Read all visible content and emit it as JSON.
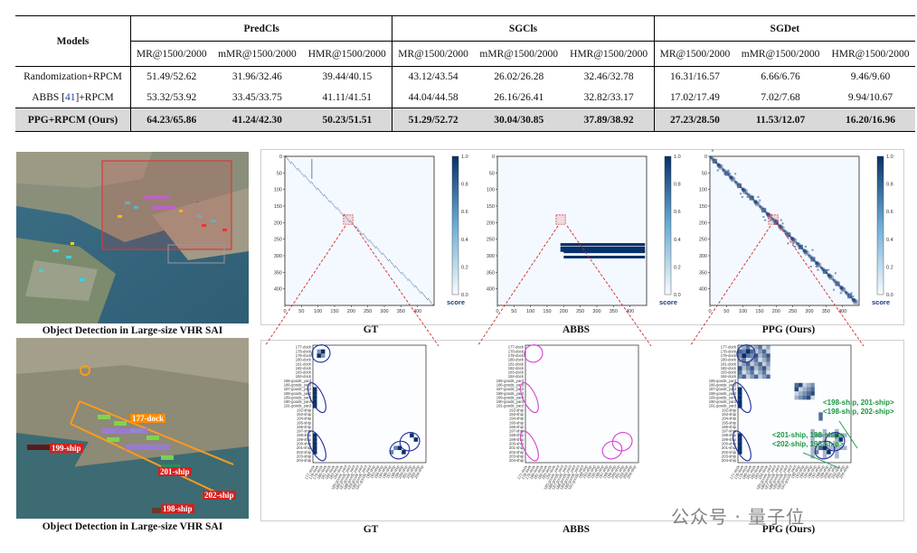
{
  "table": {
    "models_header": "Models",
    "groups": [
      "PredCls",
      "SGCls",
      "SGDet"
    ],
    "metrics": [
      "MR@1500/2000",
      "mMR@1500/2000",
      "HMR@1500/2000"
    ],
    "rows": [
      {
        "model": "Randomization+RPCM",
        "cells": [
          "51.49/52.62",
          "31.96/32.46",
          "39.44/40.15",
          "43.12/43.54",
          "26.02/26.28",
          "32.46/32.78",
          "16.31/16.57",
          "6.66/6.76",
          "9.46/9.60"
        ]
      },
      {
        "model_prefix": "ABBS [",
        "model_ref": "41",
        "model_suffix": "]+RPCM",
        "cells": [
          "53.32/53.92",
          "33.45/33.75",
          "41.11/41.51",
          "44.04/44.58",
          "26.16/26.41",
          "32.82/33.17",
          "17.02/17.49",
          "7.02/7.68",
          "9.94/10.67"
        ]
      },
      {
        "model": "PPG+RPCM (Ours)",
        "cells": [
          "64.23/65.86",
          "41.24/42.30",
          "50.23/51.51",
          "51.29/52.72",
          "30.04/30.85",
          "37.89/38.92",
          "27.23/28.50",
          "11.53/12.07",
          "16.20/16.96"
        ]
      }
    ]
  },
  "figure": {
    "caption_top": "Object Detection in Large-size VHR SAI",
    "caption_bottom": "Object Detection in Large-size VHR SAI",
    "detections": [
      "177-dock",
      "199-ship",
      "201-ship",
      "202-ship",
      "198-ship"
    ],
    "panel_labels_top": [
      "GT",
      "ABBS",
      "PPG (Ours)"
    ],
    "panel_labels_bottom": [
      "GT",
      "ABBS",
      "PPG (Ours)"
    ],
    "colorbar_ticks": [
      "0.0",
      "0.2",
      "0.4",
      "0.6",
      "0.8",
      "1.0"
    ],
    "colorbar_label": "score",
    "axis_ticks_y": [
      "0",
      "50",
      "100",
      "150",
      "200",
      "250",
      "300",
      "350",
      "400"
    ],
    "axis_ticks_x": [
      "0",
      "50",
      "100",
      "150",
      "200",
      "250",
      "300",
      "350",
      "400"
    ],
    "zoom_row_labels": [
      "177-dock",
      "178-dock",
      "179-dock",
      "180-dock",
      "181-dock",
      "182-dock",
      "183-dock",
      "184-dock",
      "185-goods_yard",
      "186-goods_yard",
      "187-goods_yard",
      "188-goods_yard",
      "189-goods_yard",
      "190-goods_yard",
      "191-goods_yard",
      "192-ship",
      "193-ship",
      "194-ship",
      "195-ship",
      "196-ship",
      "197-ship",
      "198-ship",
      "199-ship",
      "200-ship",
      "201-ship",
      "202-ship",
      "203-ship",
      "204-ship"
    ],
    "annotations": [
      "<198-ship, 201-ship>",
      "<198-ship, 202-ship>",
      "<201-ship, 198-ship>",
      "<202-ship, 198-ship>"
    ],
    "colors": {
      "heat": "#08306b",
      "annot": "#1a9641",
      "circle_gt": "#1f2a9c",
      "circle_abbs": "#d63fd0",
      "zoom_line": "#d62728"
    }
  },
  "watermark": "公众号 · 量子位"
}
